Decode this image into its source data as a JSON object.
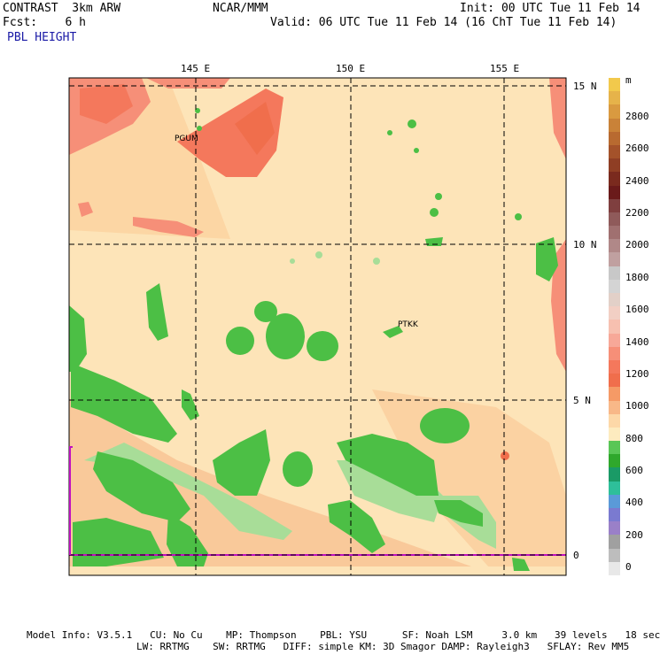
{
  "header": {
    "model": "CONTRAST  3km ARW",
    "org": "NCAR/MMM",
    "init": "Init: 00 UTC Tue 11 Feb 14",
    "fcst": "Fcst:    6 h",
    "valid": "Valid: 06 UTC Tue 11 Feb 14 (16 ChT Tue 11 Feb 14)",
    "field": "PBL HEIGHT"
  },
  "map": {
    "lon_labels": [
      "145 E",
      "150 E",
      "155 E"
    ],
    "lat_labels": [
      "15 N",
      "10 N",
      "5 N",
      "0"
    ],
    "stations": [
      "PGUM",
      "PTKK"
    ]
  },
  "colorbar": {
    "unit": "m",
    "labels": [
      "2800",
      "2600",
      "2400",
      "2200",
      "2000",
      "1800",
      "1600",
      "1400",
      "1200",
      "1000",
      "800",
      "600",
      "400",
      "200",
      "0"
    ],
    "colors": [
      "#f2c94c",
      "#e6b34a",
      "#d99a40",
      "#c98238",
      "#b86a30",
      "#a4522a",
      "#8f3e24",
      "#7a2a1e",
      "#6a1a1a",
      "#7f3f3f",
      "#8f5a5a",
      "#a07070",
      "#b08888",
      "#c0a0a0",
      "#c8c8c8",
      "#d4d4d4",
      "#e2d0c8",
      "#f2cfc4",
      "#f7c0b0",
      "#f7a898",
      "#f68f78",
      "#f4785c",
      "#f06e4c",
      "#f59a66",
      "#f8b888",
      "#fdd8a8",
      "#fdebbf",
      "#59c656",
      "#2fa82c",
      "#1a9a66",
      "#2ebf9a",
      "#5a9ad8",
      "#7a7ad0",
      "#9a80c8",
      "#a0a0a0",
      "#bdbdbd",
      "#e8e8e8"
    ]
  },
  "footer": {
    "line1": "Model Info: V3.5.1   CU: No Cu    MP: Thompson    PBL: YSU      SF: Noah LSM     3.0 km   39 levels   18 sec",
    "line2": "LW: RRTMG    SW: RRTMG   DIFF: simple KM: 3D Smagor DAMP: Rayleigh3   SFLAY: Rev MM5"
  }
}
